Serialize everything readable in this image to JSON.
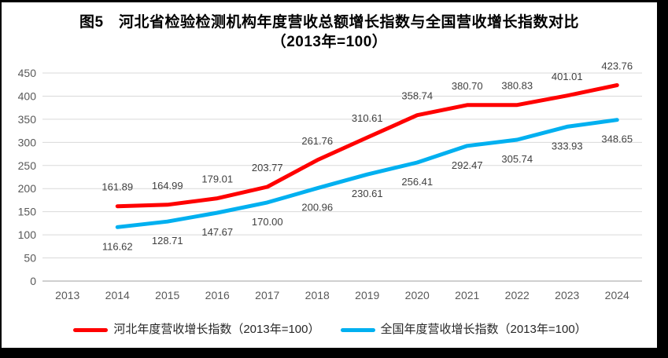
{
  "title": {
    "line1": "图5　河北省检验检测机构年度营收总额增长指数与全国营收增长指数对比",
    "line2": "（2013年=100）"
  },
  "chart_data": {
    "type": "line",
    "categories": [
      "2013",
      "2014",
      "2015",
      "2016",
      "2017",
      "2018",
      "2019",
      "2020",
      "2021",
      "2022",
      "2023",
      "2024"
    ],
    "series": [
      {
        "name": "河北年度营收增长指数（2013年=100）",
        "color": "#FF0000",
        "start_index": 1,
        "label_position": "above",
        "values": [
          161.89,
          164.99,
          179.01,
          203.77,
          261.76,
          310.61,
          358.74,
          380.7,
          380.83,
          401.01,
          423.76
        ]
      },
      {
        "name": "全国年度营收增长指数（2013年=100）",
        "color": "#00B0F0",
        "start_index": 1,
        "label_position": "below",
        "values": [
          116.62,
          128.71,
          147.67,
          170.0,
          200.96,
          230.61,
          256.41,
          292.47,
          305.74,
          333.93,
          348.65
        ]
      }
    ],
    "ylim": [
      0,
      450
    ],
    "ytick_step": 50,
    "yticks": [
      "0",
      "50",
      "100",
      "150",
      "200",
      "250",
      "300",
      "350",
      "400",
      "450"
    ],
    "grid": true,
    "legend_position": "bottom",
    "data_labels": true,
    "data_label_decimals": 2
  },
  "colors": {
    "frame_border": "#000000",
    "background": "#ffffff",
    "gridline": "#D9D9D9",
    "axis_line": "#BFBFBF",
    "tick_text": "#595959",
    "data_label_text": "#404040"
  }
}
